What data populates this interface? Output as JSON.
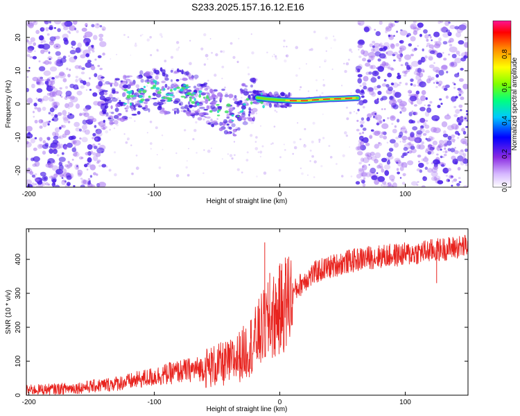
{
  "title": "S233.2025.157.16.12.E16",
  "colors": {
    "snr_line": "#e8231e",
    "amp_low": "#a46ff0",
    "amp_mid": "#4a1fe8",
    "track_hot": "#e82020",
    "track_warm": "#f0d820",
    "track_cool": "#18d8c8"
  },
  "colorbar": {
    "label": "Normalized spectral amplitude",
    "ticks": [
      "0.0",
      "0.2",
      "0.4",
      "0.6",
      "0.8"
    ]
  },
  "chart_data": [
    {
      "type": "heatmap",
      "title": "S233.2025.157.16.12.E16",
      "xlabel": "Height of straight line (km)",
      "ylabel": "Frequency (Hz)",
      "xlim": [
        -202,
        150
      ],
      "ylim": [
        -25,
        25
      ],
      "xticks": [
        "-200",
        "-100",
        "0",
        "100"
      ],
      "yticks": [
        "20",
        "10",
        "0",
        "-10",
        "-20"
      ],
      "xtick_values": [
        -200,
        -100,
        0,
        100
      ],
      "ytick_values": [
        20,
        10,
        0,
        -10,
        -20
      ],
      "colorbar_range": [
        0,
        1
      ],
      "noise_regions": [
        [
          -202,
          -140
        ],
        [
          62,
          150
        ]
      ],
      "track": [
        {
          "x": -140,
          "y": 0
        },
        {
          "x": -130,
          "y": 1
        },
        {
          "x": -120,
          "y": 2
        },
        {
          "x": -110,
          "y": 3
        },
        {
          "x": -100,
          "y": 5
        },
        {
          "x": -90,
          "y": 3
        },
        {
          "x": -80,
          "y": 4
        },
        {
          "x": -70,
          "y": 3
        },
        {
          "x": -60,
          "y": 1
        },
        {
          "x": -50,
          "y": -1
        },
        {
          "x": -40,
          "y": -3
        },
        {
          "x": -35,
          "y": -3
        },
        {
          "x": -30,
          "y": -1
        },
        {
          "x": -25,
          "y": 1
        },
        {
          "x": -20,
          "y": 2
        },
        {
          "x": -10,
          "y": 1.5
        },
        {
          "x": 0,
          "y": 1.2
        },
        {
          "x": 10,
          "y": 1
        },
        {
          "x": 20,
          "y": 1
        },
        {
          "x": 30,
          "y": 1.3
        },
        {
          "x": 40,
          "y": 1.5
        },
        {
          "x": 50,
          "y": 1.6
        },
        {
          "x": 60,
          "y": 1.8
        }
      ]
    },
    {
      "type": "line",
      "xlabel": "Height of straight line (km)",
      "ylabel": "SNR (10 * v/v)",
      "xlim": [
        -202,
        150
      ],
      "ylim": [
        0,
        490
      ],
      "xticks": [
        "-200",
        "-100",
        "0",
        "100"
      ],
      "yticks": [
        "0",
        "100",
        "200",
        "300",
        "400"
      ],
      "xtick_values": [
        -200,
        -100,
        0,
        100
      ],
      "ytick_values": [
        0,
        100,
        200,
        300,
        400
      ],
      "series": [
        {
          "trend": [
            {
              "x": -202,
              "y": 15
            },
            {
              "x": -180,
              "y": 18
            },
            {
              "x": -160,
              "y": 22
            },
            {
              "x": -140,
              "y": 30
            },
            {
              "x": -120,
              "y": 40
            },
            {
              "x": -100,
              "y": 55
            },
            {
              "x": -80,
              "y": 70
            },
            {
              "x": -60,
              "y": 80
            },
            {
              "x": -40,
              "y": 95
            },
            {
              "x": -30,
              "y": 120
            },
            {
              "x": -20,
              "y": 160
            },
            {
              "x": -15,
              "y": 190
            },
            {
              "x": -10,
              "y": 210
            },
            {
              "x": -5,
              "y": 230
            },
            {
              "x": 0,
              "y": 250
            },
            {
              "x": 10,
              "y": 300
            },
            {
              "x": 20,
              "y": 340
            },
            {
              "x": 30,
              "y": 365
            },
            {
              "x": 50,
              "y": 390
            },
            {
              "x": 70,
              "y": 405
            },
            {
              "x": 100,
              "y": 415
            },
            {
              "x": 130,
              "y": 430
            },
            {
              "x": 150,
              "y": 440
            }
          ],
          "spikes": [
            {
              "x": -12,
              "y": 450
            },
            {
              "x": -8,
              "y": 360
            },
            {
              "x": 125,
              "y": 330
            }
          ]
        }
      ]
    }
  ]
}
